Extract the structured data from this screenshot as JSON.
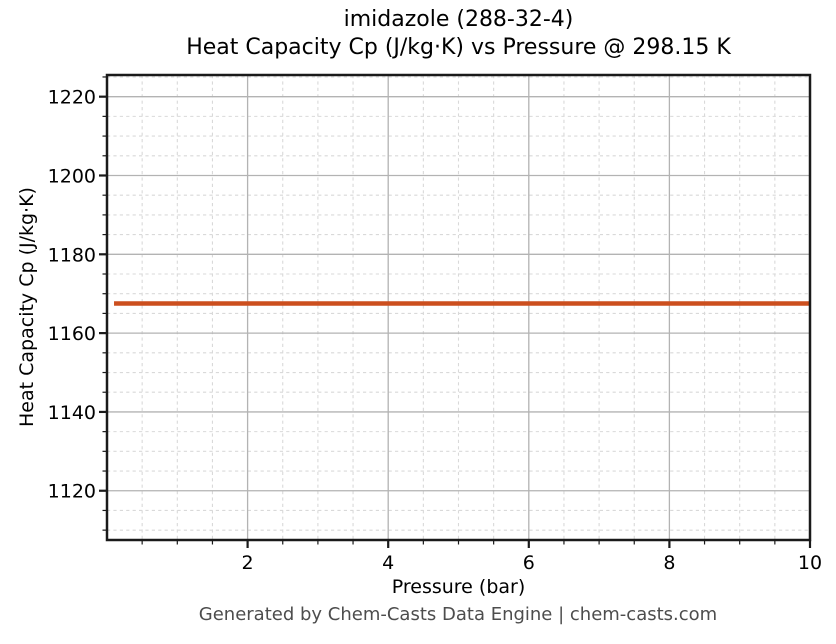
{
  "footer": "Generated by Chem-Casts Data Engine | chem-casts.com",
  "colors": {
    "line": "#cc4f1e",
    "spine": "#1a1a1a",
    "tick": "#1a1a1a",
    "grid_major": "#b3b3b3",
    "grid_minor": "#d9d9d9",
    "text": "#000000",
    "footer_text": "#4d4d4d",
    "background": "#ffffff"
  },
  "chart_data": {
    "type": "line",
    "compound": "imidazole",
    "cas_number": "288-32-4",
    "temperature": "298.15 K",
    "title": "imidazole (288-32-4)\nHeat Capacity Cp (J/kg·K) vs Pressure @ 298.15 K",
    "xlabel": "Pressure (bar)",
    "ylabel": "Heat Capacity Cp (J/kg·K)",
    "xlim": [
      0,
      10
    ],
    "ylim": [
      1107.5,
      1225.5
    ],
    "x_major_ticks": [
      2,
      4,
      6,
      8,
      10
    ],
    "y_major_ticks": [
      1120,
      1140,
      1160,
      1180,
      1200,
      1220
    ],
    "x_minor_step": 0.5,
    "y_minor_step": 5,
    "grid": {
      "major": true,
      "minor": true
    },
    "legend": false,
    "series": [
      {
        "name": "Heat Capacity Cp",
        "color": "#cc4f1e",
        "x": [
          0.1,
          10
        ],
        "y": [
          1167.5,
          1167.5
        ]
      }
    ]
  }
}
